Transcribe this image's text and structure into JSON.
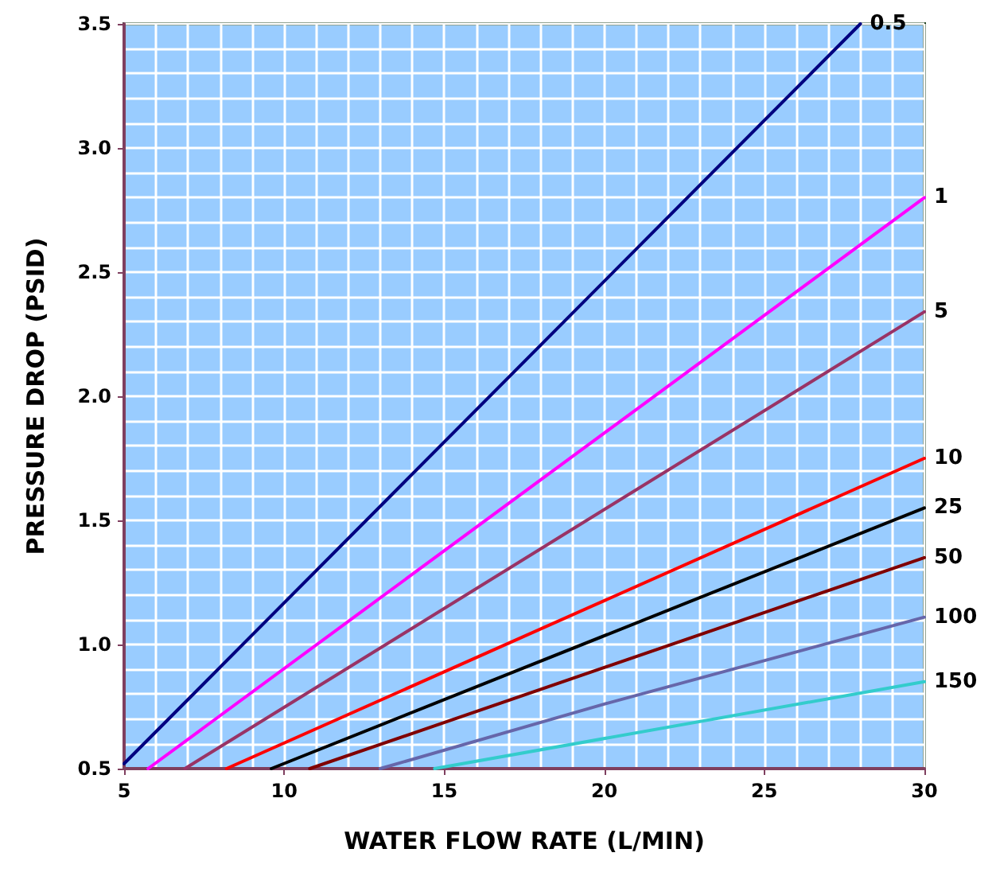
{
  "chart_data": {
    "type": "line",
    "xlabel": "WATER FLOW RATE (L/MIN)",
    "ylabel": "PRESSURE DROP (PSID)",
    "xlim": [
      5,
      30
    ],
    "xticks": [
      5,
      10,
      15,
      20,
      25,
      30
    ],
    "ylim": [
      0.5,
      3.5
    ],
    "yticks": [
      0.5,
      {
        "value": 1,
        "label": "1.0"
      },
      1.5,
      {
        "value": 2,
        "label": "2.0"
      },
      2.5,
      {
        "value": 3,
        "label": "3.0"
      },
      3.5
    ],
    "grid": true,
    "legend": false,
    "marker": "none",
    "line_style": "solid",
    "series": [
      {
        "name": "0.5",
        "color": "#000080",
        "x": [
          5,
          28
        ],
        "values": [
          0.52,
          3.5
        ]
      },
      {
        "name": "1",
        "color": "#ff00ff",
        "x": [
          5.75,
          30
        ],
        "values": [
          0.5,
          2.8
        ]
      },
      {
        "name": "5",
        "color": "#993366",
        "x": [
          6.9,
          30
        ],
        "values": [
          0.5,
          2.34
        ]
      },
      {
        "name": "10",
        "color": "#ff0000",
        "x": [
          8.2,
          30
        ],
        "values": [
          0.5,
          1.75
        ]
      },
      {
        "name": "25",
        "color": "#000000",
        "x": [
          9.6,
          30
        ],
        "values": [
          0.5,
          1.55
        ]
      },
      {
        "name": "50",
        "color": "#800000",
        "x": [
          10.8,
          30
        ],
        "values": [
          0.5,
          1.35
        ]
      },
      {
        "name": "100",
        "color": "#6666aa",
        "x": [
          13,
          20,
          30
        ],
        "values": [
          0.5,
          0.76,
          1.11
        ]
      },
      {
        "name": "150",
        "color": "#33cccc",
        "x": [
          14.7,
          30
        ],
        "values": [
          0.5,
          0.85
        ]
      }
    ]
  }
}
